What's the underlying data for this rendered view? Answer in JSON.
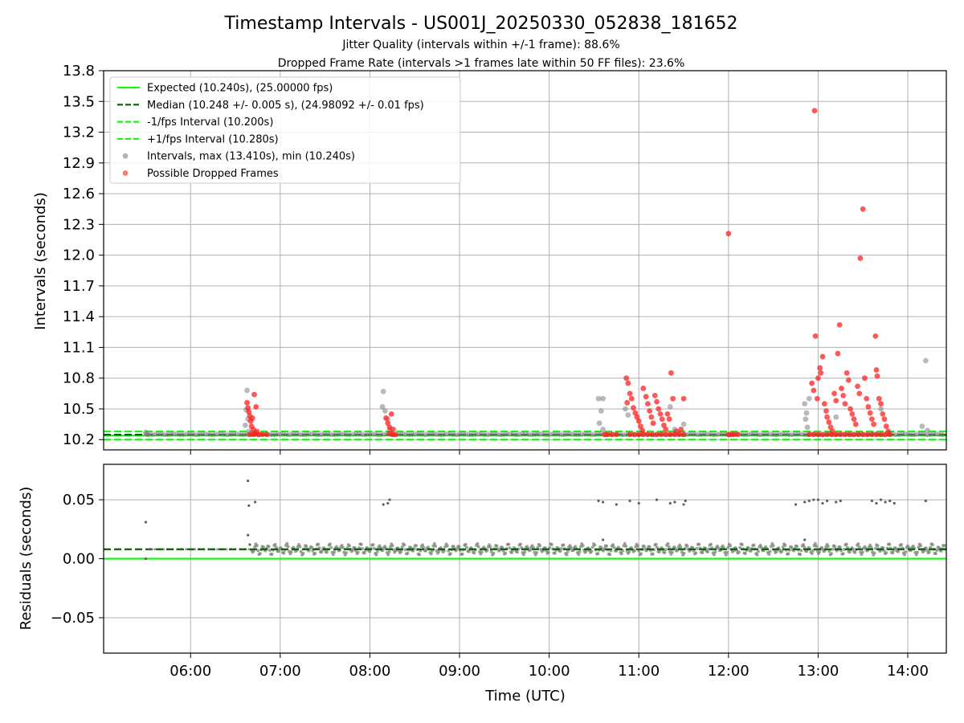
{
  "chart_data": [
    {
      "type": "scatter",
      "title": "Timestamp Intervals - US001J_20250330_052838_181652",
      "subtitle_lines": [
        "Jitter Quality (intervals within +/-1 frame): 88.6%",
        "Dropped Frame Rate (intervals >1 frames late within 50 FF files): 23.6%"
      ],
      "ylabel": "Intervals (seconds)",
      "xlim_hours": [
        5.03,
        14.43
      ],
      "ylim": [
        10.1,
        13.8
      ],
      "y_ticks": [
        "10.2",
        "10.5",
        "10.8",
        "11.1",
        "11.4",
        "11.7",
        "12.0",
        "12.3",
        "12.6",
        "12.9",
        "13.2",
        "13.5",
        "13.8"
      ],
      "y_tick_values": [
        10.2,
        10.5,
        10.8,
        11.1,
        11.4,
        11.7,
        12.0,
        12.3,
        12.6,
        12.9,
        13.2,
        13.5,
        13.8
      ],
      "grid": true,
      "legend_position": "upper-left",
      "reference_lines": [
        {
          "name": "Expected (10.240s), (25.00000 fps)",
          "y": 10.24,
          "style": "solid",
          "color": "#22ee22"
        },
        {
          "name": "Median (10.248 +/- 0.005 s), (24.98092 +/- 0.01 fps)",
          "y": 10.248,
          "style": "dashed",
          "color": "#006400"
        },
        {
          "name": "-1/fps Interval (10.200s)",
          "y": 10.2,
          "style": "dashed",
          "color": "#22ee22"
        },
        {
          "name": "+1/fps Interval (10.280s)",
          "y": 10.28,
          "style": "dashed",
          "color": "#22ee22"
        }
      ],
      "series": [
        {
          "name": "Intervals, max (13.410s), min (10.240s)",
          "color": "#808080",
          "points": [
            [
              6.63,
              10.68
            ],
            [
              6.62,
              10.49
            ],
            [
              6.64,
              10.4
            ],
            [
              6.61,
              10.34
            ],
            [
              6.65,
              10.28
            ],
            [
              8.14,
              10.52
            ],
            [
              8.15,
              10.67
            ],
            [
              8.17,
              10.48
            ],
            [
              8.2,
              10.4
            ],
            [
              8.22,
              10.3
            ],
            [
              10.55,
              10.6
            ],
            [
              10.6,
              10.6
            ],
            [
              10.58,
              10.48
            ],
            [
              10.56,
              10.36
            ],
            [
              10.6,
              10.3
            ],
            [
              10.85,
              10.5
            ],
            [
              10.88,
              10.44
            ],
            [
              11.35,
              10.52
            ],
            [
              11.5,
              10.35
            ],
            [
              11.4,
              10.3
            ],
            [
              12.85,
              10.55
            ],
            [
              12.87,
              10.46
            ],
            [
              12.86,
              10.4
            ],
            [
              12.9,
              10.6
            ],
            [
              12.88,
              10.32
            ],
            [
              13.2,
              10.42
            ],
            [
              13.7,
              10.5
            ],
            [
              14.16,
              10.33
            ],
            [
              14.2,
              10.97
            ],
            [
              14.22,
              10.29
            ],
            [
              5.5,
              10.27
            ],
            [
              5.52,
              10.25
            ]
          ]
        },
        {
          "name": "Possible Dropped Frames",
          "color": "#ff2020",
          "points": [
            [
              6.63,
              10.56
            ],
            [
              6.64,
              10.51
            ],
            [
              6.65,
              10.47
            ],
            [
              6.66,
              10.43
            ],
            [
              6.67,
              10.38
            ],
            [
              6.68,
              10.33
            ],
            [
              6.7,
              10.3
            ],
            [
              6.72,
              10.26
            ],
            [
              6.69,
              10.41
            ],
            [
              6.73,
              10.52
            ],
            [
              6.71,
              10.64
            ],
            [
              6.74,
              10.28
            ],
            [
              6.76,
              10.25
            ],
            [
              6.8,
              10.25
            ],
            [
              6.85,
              10.25
            ],
            [
              6.66,
              10.25
            ],
            [
              6.7,
              10.25
            ],
            [
              8.18,
              10.41
            ],
            [
              8.2,
              10.36
            ],
            [
              8.22,
              10.32
            ],
            [
              8.24,
              10.45
            ],
            [
              8.26,
              10.3
            ],
            [
              8.22,
              10.26
            ],
            [
              8.25,
              10.25
            ],
            [
              8.28,
              10.25
            ],
            [
              10.62,
              10.25
            ],
            [
              10.65,
              10.25
            ],
            [
              10.7,
              10.25
            ],
            [
              10.75,
              10.25
            ],
            [
              10.86,
              10.8
            ],
            [
              10.88,
              10.75
            ],
            [
              10.9,
              10.65
            ],
            [
              10.92,
              10.6
            ],
            [
              10.87,
              10.56
            ],
            [
              10.94,
              10.51
            ],
            [
              10.96,
              10.46
            ],
            [
              10.98,
              10.42
            ],
            [
              11.0,
              10.38
            ],
            [
              11.02,
              10.33
            ],
            [
              11.04,
              10.29
            ],
            [
              10.9,
              10.25
            ],
            [
              10.95,
              10.25
            ],
            [
              11.0,
              10.25
            ],
            [
              11.05,
              10.25
            ],
            [
              11.1,
              10.25
            ],
            [
              11.15,
              10.25
            ],
            [
              11.2,
              10.25
            ],
            [
              11.25,
              10.25
            ],
            [
              11.3,
              10.25
            ],
            [
              11.35,
              10.25
            ],
            [
              11.4,
              10.25
            ],
            [
              11.45,
              10.25
            ],
            [
              11.5,
              10.25
            ],
            [
              11.05,
              10.7
            ],
            [
              11.08,
              10.62
            ],
            [
              11.1,
              10.55
            ],
            [
              11.12,
              10.48
            ],
            [
              11.14,
              10.42
            ],
            [
              11.16,
              10.36
            ],
            [
              11.18,
              10.63
            ],
            [
              11.2,
              10.57
            ],
            [
              11.22,
              10.5
            ],
            [
              11.24,
              10.45
            ],
            [
              11.26,
              10.4
            ],
            [
              11.28,
              10.34
            ],
            [
              11.3,
              10.3
            ],
            [
              11.32,
              10.45
            ],
            [
              11.34,
              10.4
            ],
            [
              11.36,
              10.85
            ],
            [
              11.38,
              10.6
            ],
            [
              11.42,
              10.28
            ],
            [
              11.5,
              10.6
            ],
            [
              11.47,
              10.3
            ],
            [
              12.0,
              12.21
            ],
            [
              12.0,
              10.25
            ],
            [
              12.03,
              10.25
            ],
            [
              12.06,
              10.25
            ],
            [
              12.1,
              10.25
            ],
            [
              12.93,
              10.75
            ],
            [
              12.95,
              10.68
            ],
            [
              12.97,
              11.21
            ],
            [
              12.99,
              10.6
            ],
            [
              13.0,
              10.8
            ],
            [
              13.02,
              10.9
            ],
            [
              13.03,
              10.85
            ],
            [
              13.05,
              11.01
            ],
            [
              13.07,
              10.55
            ],
            [
              13.09,
              10.48
            ],
            [
              13.1,
              10.42
            ],
            [
              13.12,
              10.37
            ],
            [
              13.14,
              10.32
            ],
            [
              13.16,
              10.28
            ],
            [
              13.18,
              10.65
            ],
            [
              13.2,
              10.58
            ],
            [
              13.22,
              11.04
            ],
            [
              13.24,
              11.32
            ],
            [
              13.26,
              10.7
            ],
            [
              13.28,
              10.63
            ],
            [
              13.3,
              10.55
            ],
            [
              13.32,
              10.85
            ],
            [
              13.34,
              10.78
            ],
            [
              13.36,
              10.5
            ],
            [
              13.38,
              10.45
            ],
            [
              13.4,
              10.4
            ],
            [
              13.42,
              10.35
            ],
            [
              13.44,
              10.72
            ],
            [
              13.46,
              10.65
            ],
            [
              13.47,
              11.97
            ],
            [
              13.5,
              12.45
            ],
            [
              13.52,
              10.8
            ],
            [
              13.54,
              10.6
            ],
            [
              13.56,
              10.52
            ],
            [
              13.58,
              10.46
            ],
            [
              13.6,
              10.4
            ],
            [
              13.62,
              10.35
            ],
            [
              13.64,
              11.21
            ],
            [
              13.65,
              10.88
            ],
            [
              13.66,
              10.82
            ],
            [
              13.68,
              10.6
            ],
            [
              13.7,
              10.55
            ],
            [
              13.72,
              10.45
            ],
            [
              13.74,
              10.4
            ],
            [
              13.76,
              10.33
            ],
            [
              13.78,
              10.28
            ],
            [
              12.9,
              10.25
            ],
            [
              12.95,
              10.25
            ],
            [
              13.0,
              10.25
            ],
            [
              13.05,
              10.25
            ],
            [
              13.1,
              10.25
            ],
            [
              13.15,
              10.25
            ],
            [
              13.2,
              10.25
            ],
            [
              13.25,
              10.25
            ],
            [
              13.3,
              10.25
            ],
            [
              13.35,
              10.25
            ],
            [
              13.4,
              10.25
            ],
            [
              13.45,
              10.25
            ],
            [
              13.5,
              10.25
            ],
            [
              13.55,
              10.25
            ],
            [
              13.6,
              10.25
            ],
            [
              13.65,
              10.25
            ],
            [
              13.7,
              10.25
            ],
            [
              13.75,
              10.25
            ],
            [
              13.8,
              10.25
            ],
            [
              12.96,
              13.41
            ]
          ]
        }
      ]
    },
    {
      "type": "scatter",
      "ylabel": "Residuals (seconds)",
      "xlabel": "Time (UTC)",
      "xlim_hours": [
        5.03,
        14.43
      ],
      "ylim": [
        -0.08,
        0.08
      ],
      "y_ticks": [
        "−0.05",
        "0.00",
        "0.05"
      ],
      "y_tick_values": [
        -0.05,
        0.0,
        0.05
      ],
      "x_ticks": [
        "06:00",
        "07:00",
        "08:00",
        "09:00",
        "10:00",
        "11:00",
        "12:00",
        "13:00",
        "14:00"
      ],
      "x_tick_values": [
        6,
        7,
        8,
        9,
        10,
        11,
        12,
        13,
        14
      ],
      "grid": true,
      "reference_lines": [
        {
          "y": 0.0,
          "style": "solid",
          "color": "#22ee22"
        },
        {
          "y": 0.008,
          "style": "dashed",
          "color": "#006400"
        }
      ],
      "band": {
        "y_center": 0.008,
        "spread": 0.003,
        "x_start": 6.68,
        "x_end": 14.43,
        "color": "#808080"
      },
      "series": [
        {
          "color": "#606060",
          "points": [
            [
              5.5,
              0.031
            ],
            [
              5.5,
              0.0
            ],
            [
              5.55,
              0.008
            ],
            [
              6.64,
              0.066
            ],
            [
              6.65,
              0.045
            ],
            [
              6.72,
              0.048
            ],
            [
              6.64,
              0.02
            ],
            [
              6.66,
              0.012
            ],
            [
              8.15,
              0.046
            ],
            [
              8.2,
              0.047
            ],
            [
              8.22,
              0.05
            ],
            [
              10.55,
              0.049
            ],
            [
              10.6,
              0.048
            ],
            [
              10.6,
              0.016
            ],
            [
              10.75,
              0.046
            ],
            [
              10.9,
              0.049
            ],
            [
              11.0,
              0.047
            ],
            [
              11.2,
              0.05
            ],
            [
              11.35,
              0.047
            ],
            [
              11.4,
              0.048
            ],
            [
              11.5,
              0.046
            ],
            [
              11.52,
              0.049
            ],
            [
              12.85,
              0.016
            ],
            [
              12.75,
              0.046
            ],
            [
              12.85,
              0.048
            ],
            [
              12.9,
              0.049
            ],
            [
              12.95,
              0.05
            ],
            [
              13.0,
              0.05
            ],
            [
              13.05,
              0.047
            ],
            [
              13.1,
              0.049
            ],
            [
              13.2,
              0.048
            ],
            [
              13.25,
              0.049
            ],
            [
              13.6,
              0.049
            ],
            [
              13.65,
              0.047
            ],
            [
              13.7,
              0.05
            ],
            [
              13.75,
              0.048
            ],
            [
              13.8,
              0.049
            ],
            [
              13.85,
              0.047
            ],
            [
              14.2,
              0.049
            ]
          ]
        }
      ]
    }
  ]
}
